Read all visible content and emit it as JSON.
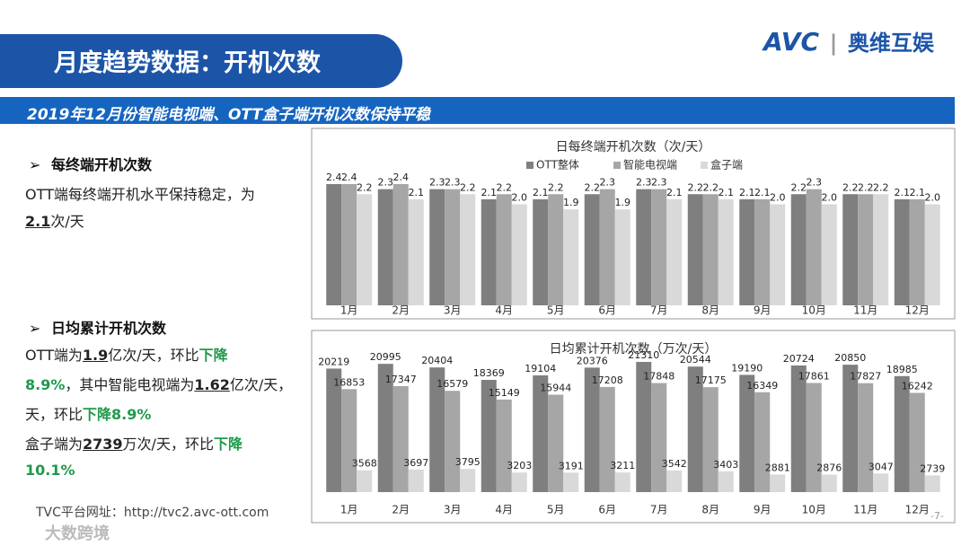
{
  "header": {
    "title": "月度趋势数据：开机次数",
    "logo_mark": "AVC",
    "logo_text": "奥维互娱"
  },
  "banner": "2019年12月份智能电视端、OTT盒子端开机次数保持平稳",
  "sections": [
    {
      "heading": "每终端开机次数",
      "lines": [
        [
          "OTT端每终端开机水平保持稳定，为"
        ],
        [
          "2.1",
          "次/天"
        ]
      ]
    },
    {
      "heading": "日均累计开机次数",
      "lines": [
        [
          "OTT端为",
          "1.9",
          "亿次/天，环比",
          "下降"
        ],
        [
          "8.9%",
          "，其中智能电视端为",
          "1.62",
          "亿次/天，"
        ],
        [
          "天，环比",
          "下降8.9%"
        ],
        [
          "盒子端为",
          "2739",
          "万次/天，环比",
          "下降"
        ],
        [
          "10.1%"
        ]
      ]
    }
  ],
  "footer": "TVC平台网址：http://tvc2.avc-ott.com",
  "page_number": "-7-",
  "watermark": "大数跨境",
  "chart_data": [
    {
      "type": "bar",
      "title": "日每终端开机次数（次/天）",
      "legend": true,
      "categories": [
        "1月",
        "2月",
        "3月",
        "4月",
        "5月",
        "6月",
        "7月",
        "8月",
        "9月",
        "10月",
        "11月",
        "12月"
      ],
      "series": [
        {
          "name": "OTT整体",
          "color": "#7f7f7f",
          "values": [
            2.4,
            2.3,
            2.3,
            2.1,
            2.1,
            2.2,
            2.3,
            2.2,
            2.1,
            2.2,
            2.2,
            2.1
          ]
        },
        {
          "name": "智能电视端",
          "color": "#a6a6a6",
          "values": [
            2.4,
            2.4,
            2.3,
            2.2,
            2.2,
            2.3,
            2.3,
            2.2,
            2.1,
            2.3,
            2.2,
            2.1
          ]
        },
        {
          "name": "盒子端",
          "color": "#d9d9d9",
          "values": [
            2.2,
            2.1,
            2.2,
            2.0,
            1.9,
            1.9,
            2.1,
            2.1,
            2.0,
            2.0,
            2.2,
            2.0
          ],
          "value_labels": [
            "2.2",
            "2.1",
            "2.2",
            "2.0",
            "1.9",
            "1.9",
            "2.1",
            "2.1",
            "2.0",
            "2.0",
            "2.2",
            "2.0"
          ]
        }
      ]
    },
    {
      "type": "bar",
      "title": "日均累计开机次数（万次/天）",
      "legend": false,
      "categories": [
        "1月",
        "2月",
        "3月",
        "4月",
        "5月",
        "6月",
        "7月",
        "8月",
        "9月",
        "10月",
        "11月",
        "12月"
      ],
      "series": [
        {
          "color": "#7f7f7f",
          "values": [
            20219,
            20995,
            20404,
            18369,
            19104,
            20376,
            21310,
            20544,
            19190,
            20724,
            20850,
            18985
          ]
        },
        {
          "color": "#a6a6a6",
          "values": [
            16853,
            17347,
            16579,
            15149,
            15944,
            17208,
            17848,
            17175,
            16349,
            17861,
            17827,
            16242
          ]
        },
        {
          "color": "#d9d9d9",
          "values": [
            3568,
            3697,
            3795,
            3203,
            3191,
            3211,
            3542,
            3403,
            2881,
            2876,
            3047,
            2739
          ]
        }
      ]
    }
  ]
}
